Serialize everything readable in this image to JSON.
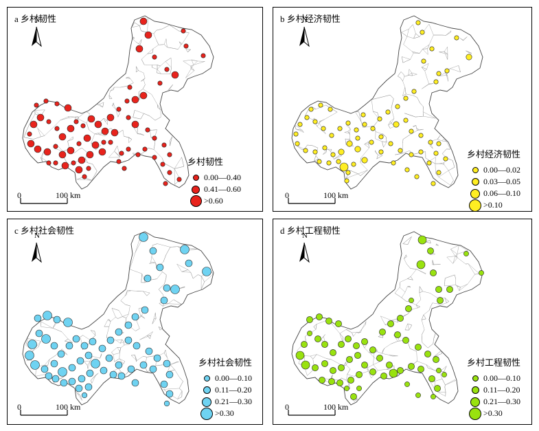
{
  "panels": [
    {
      "id": "a",
      "title": "a 乡村韧性",
      "color": "#e8231c",
      "legend_title": "乡村韧性",
      "classes": [
        "0.00—0.40",
        "0.41—0.60",
        ">0.60"
      ]
    },
    {
      "id": "b",
      "title": "b 乡村经济韧性",
      "color": "#ffee22",
      "legend_title": "乡村经济韧性",
      "classes": [
        "0.00—0.02",
        "0.03—0.05",
        "0.06—0.10",
        ">0.10"
      ]
    },
    {
      "id": "c",
      "title": "c 乡村社会韧性",
      "color": "#6fd3f2",
      "legend_title": "乡村社会韧性",
      "classes": [
        "0.00—0.10",
        "0.11—0.20",
        "0.21—0.30",
        ">0.30"
      ]
    },
    {
      "id": "d",
      "title": "d 乡村工程韧性",
      "color": "#99e20f",
      "legend_title": "乡村工程韧性",
      "classes": [
        "0.00—0.10",
        "0.11—0.20",
        "0.21—0.30",
        ">0.30"
      ]
    }
  ],
  "north_label": "N",
  "scale": {
    "start": "0",
    "end": "100 km"
  }
}
